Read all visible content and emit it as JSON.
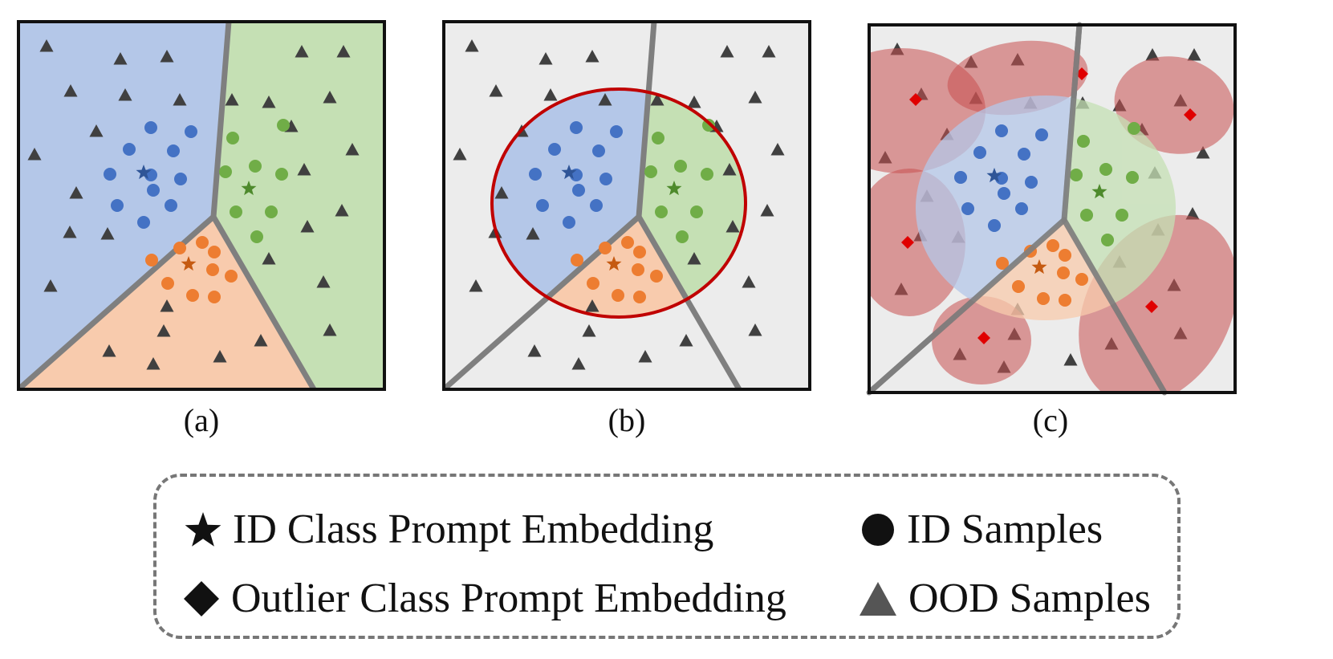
{
  "colors": {
    "blue_region": "#b4c7e8",
    "green_region": "#c5e0b4",
    "orange_region": "#f8cbad",
    "gray_region": "#ececec",
    "boundary": "#7f7f7f",
    "blue_point": "#4472c4",
    "green_point": "#70ad47",
    "orange_point": "#ed7d31",
    "ood_point": "#404040",
    "ellipse_stroke": "#c00000",
    "outlier_fill": "#c85050",
    "outlier_marker": "#e00000"
  },
  "panels": [
    {
      "id": "a",
      "label": "(a)"
    },
    {
      "id": "b",
      "label": "(b)"
    },
    {
      "id": "c",
      "label": "(c)"
    }
  ],
  "legend": {
    "items": [
      {
        "id": "id-prompt",
        "icon": "star-icon",
        "label": "ID Class Prompt Embedding"
      },
      {
        "id": "id-samples",
        "icon": "circle-icon",
        "label": "ID Samples"
      },
      {
        "id": "outlier-prompt",
        "icon": "diamond-icon",
        "label": "Outlier Class Prompt Embedding"
      },
      {
        "id": "ood-samples",
        "icon": "triangle-icon",
        "label": "OOD Samples"
      }
    ]
  }
}
